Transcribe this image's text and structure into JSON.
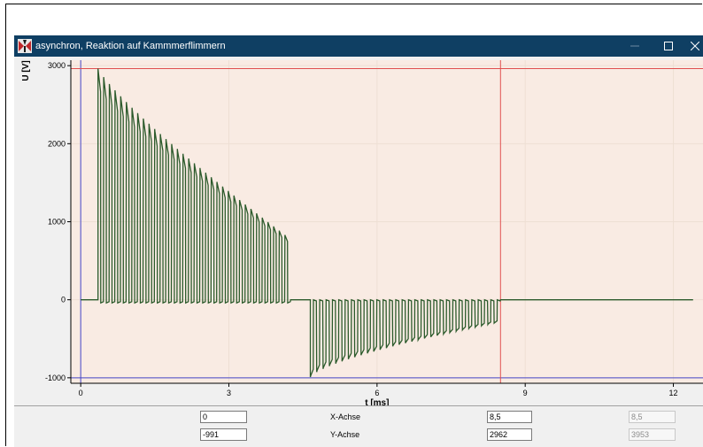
{
  "window": {
    "title": "asynchron, Reaktion auf Kammmerflimmern",
    "icon": "app-logo-icon",
    "controls": [
      "minimize-icon",
      "maximize-icon",
      "close-icon"
    ]
  },
  "chart_data": {
    "type": "line",
    "title": "",
    "xlabel": "t [ms]",
    "ylabel": "U [V]",
    "xlim": [
      -0.2,
      12.6
    ],
    "ylim": [
      -1070,
      3070
    ],
    "x_ticks": [
      0,
      3,
      6,
      9,
      12
    ],
    "y_ticks": [
      -1000,
      0,
      1000,
      2000,
      3000
    ],
    "x_tick_labels": [
      "0",
      "3",
      "6",
      "9",
      "12"
    ],
    "y_tick_labels": [
      "-1000",
      "0",
      "1000",
      "2000",
      "3000"
    ],
    "grid": true,
    "legend": "none",
    "colors": {
      "plot_background": "#f9ebe3",
      "trace": "#2b5a2b",
      "grid": "#eedfd4",
      "cursor_red": "#e05050",
      "cursor_blue": "#4646c8"
    },
    "cursors": {
      "x_blue": 0,
      "x_red": 8.5,
      "y_blue": -1000,
      "y_red": 2962
    },
    "baseline": 0,
    "phase1": {
      "start_ms": 0.35,
      "end_ms": 4.25,
      "pulses": 34,
      "first_peak": 2962,
      "last_peak": 830,
      "low_level": -40
    },
    "phase2": {
      "start_ms": 4.65,
      "end_ms": 8.5,
      "pulses": 30,
      "first_peak": -991,
      "last_peak": -300,
      "high_level": 0
    },
    "end_ms": 12.4
  },
  "panel": {
    "x_axis_label": "X-Achse",
    "y_axis_label": "Y-Achse",
    "x_min": "0",
    "y_min": "-991",
    "x_cursor": "8,5",
    "y_cursor": "2962",
    "x_readonly": "8,5",
    "y_readonly": "3953"
  }
}
